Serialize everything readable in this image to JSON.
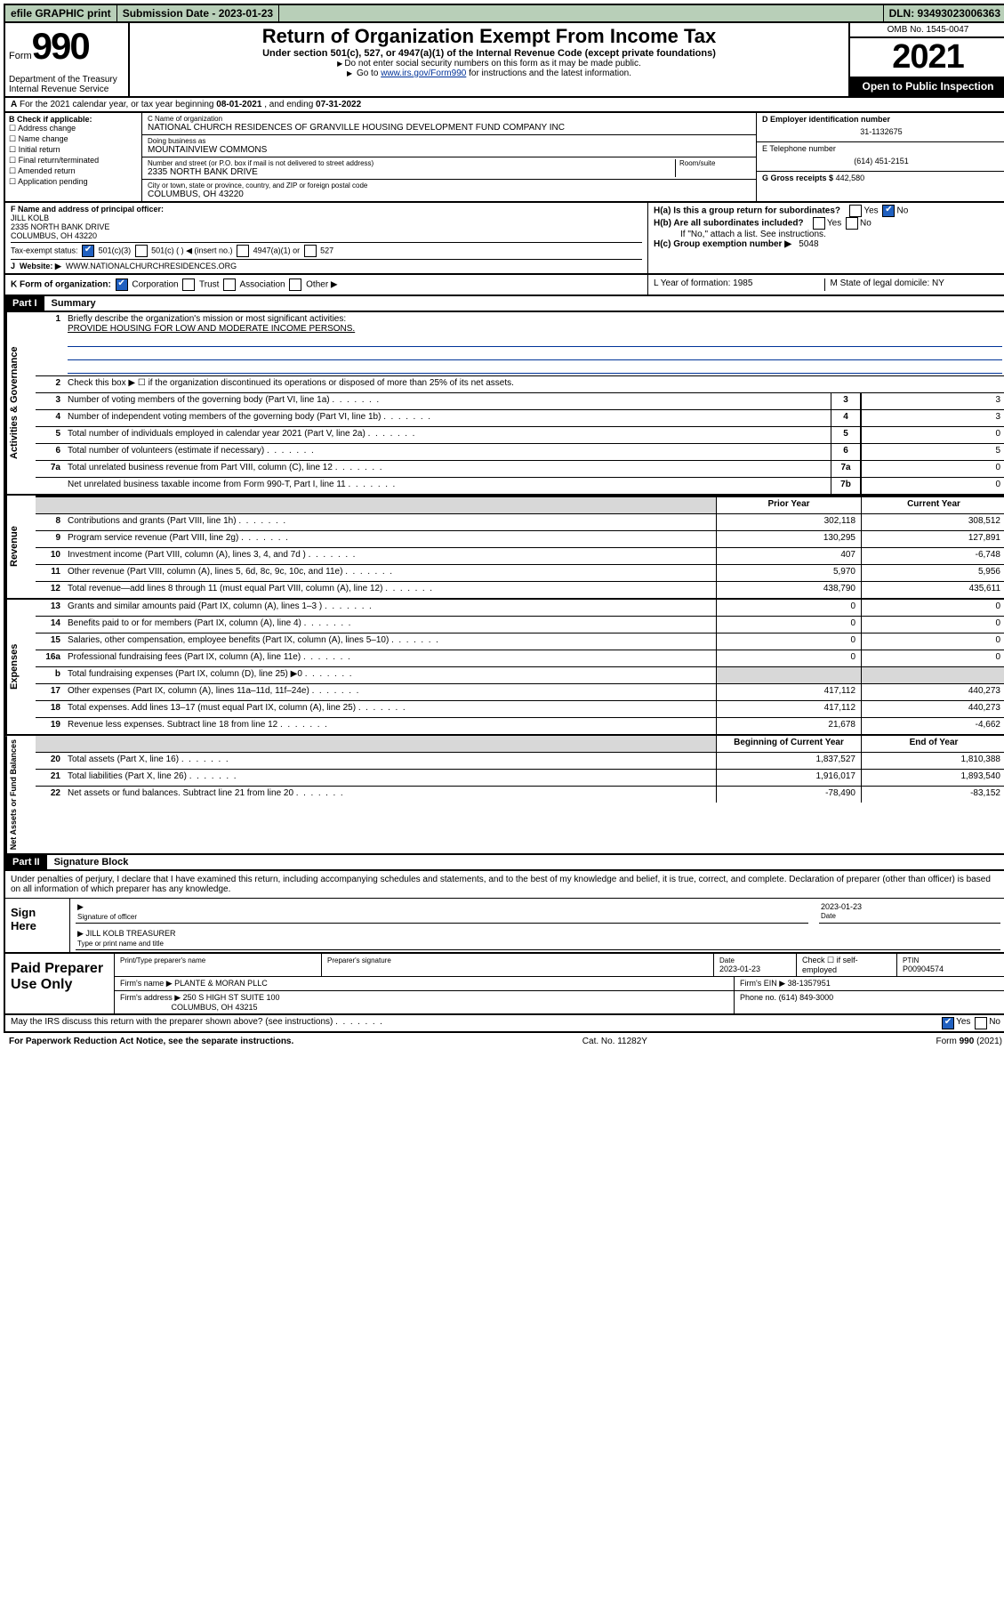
{
  "topbar": {
    "efile": "efile GRAPHIC print",
    "sub_label": "Submission Date - 2023-01-23",
    "dln": "DLN: 93493023006363"
  },
  "header": {
    "form_word": "Form",
    "form_num": "990",
    "title": "Return of Organization Exempt From Income Tax",
    "subtitle": "Under section 501(c), 527, or 4947(a)(1) of the Internal Revenue Code (except private foundations)",
    "note1": "Do not enter social security numbers on this form as it may be made public.",
    "note2_pre": "Go to ",
    "note2_link": "www.irs.gov/Form990",
    "note2_post": " for instructions and the latest information.",
    "dept": "Department of the Treasury\nInternal Revenue Service",
    "omb": "OMB No. 1545-0047",
    "year": "2021",
    "open": "Open to Public Inspection"
  },
  "line_a": {
    "pre": "For the 2021 calendar year, or tax year beginning ",
    "begin": "08-01-2021",
    "mid": " , and ending ",
    "end": "07-31-2022"
  },
  "col_b": {
    "header": "B Check if applicable:",
    "items": [
      "Address change",
      "Name change",
      "Initial return",
      "Final return/terminated",
      "Amended return",
      "Application pending"
    ]
  },
  "col_c": {
    "name_label": "C Name of organization",
    "name": "NATIONAL CHURCH RESIDENCES OF GRANVILLE HOUSING DEVELOPMENT FUND COMPANY INC",
    "dba_label": "Doing business as",
    "dba": "MOUNTAINVIEW COMMONS",
    "addr_label": "Number and street (or P.O. box if mail is not delivered to street address)",
    "addr": "2335 NORTH BANK DRIVE",
    "room_label": "Room/suite",
    "city_label": "City or town, state or province, country, and ZIP or foreign postal code",
    "city": "COLUMBUS, OH  43220"
  },
  "col_d": {
    "ein_label": "D Employer identification number",
    "ein": "31-1132675",
    "tel_label": "E Telephone number",
    "tel": "(614) 451-2151",
    "gross_label": "G Gross receipts $",
    "gross": "442,580"
  },
  "block_f": {
    "f_label": "F Name and address of principal officer:",
    "f_name": "JILL KOLB",
    "f_addr": "2335 NORTH BANK DRIVE\nCOLUMBUS, OH  43220",
    "tax_label": "Tax-exempt status:",
    "opt1": "501(c)(3)",
    "opt2": "501(c) (  ) ◀ (insert no.)",
    "opt3": "4947(a)(1) or",
    "opt4": "527",
    "web_label": "Website: ▶",
    "web": "WWW.NATIONALCHURCHRESIDENCES.ORG"
  },
  "block_h": {
    "ha": "H(a)  Is this a group return for subordinates?",
    "hb": "H(b)  Are all subordinates included?",
    "hb_note": "If \"No,\" attach a list. See instructions.",
    "hc": "H(c)  Group exemption number ▶",
    "hc_val": "5048",
    "yes": "Yes",
    "no": "No"
  },
  "line_k": {
    "k": "K Form of organization:",
    "corp": "Corporation",
    "trust": "Trust",
    "assoc": "Association",
    "other": "Other ▶",
    "l": "L Year of formation: 1985",
    "m": "M State of legal domicile: NY"
  },
  "part1": {
    "hdr": "Part I",
    "title": "Summary",
    "side1": "Activities & Governance",
    "side2": "Revenue",
    "side3": "Expenses",
    "side4": "Net Assets or Fund Balances",
    "l1": "Briefly describe the organization's mission or most significant activities:",
    "mission": "PROVIDE HOUSING FOR LOW AND MODERATE INCOME PERSONS.",
    "l2": "Check this box ▶ ☐ if the organization discontinued its operations or disposed of more than 25% of its net assets.",
    "rows_gov": [
      {
        "n": "3",
        "d": "Number of voting members of the governing body (Part VI, line 1a)",
        "b": "3",
        "v": "3"
      },
      {
        "n": "4",
        "d": "Number of independent voting members of the governing body (Part VI, line 1b)",
        "b": "4",
        "v": "3"
      },
      {
        "n": "5",
        "d": "Total number of individuals employed in calendar year 2021 (Part V, line 2a)",
        "b": "5",
        "v": "0"
      },
      {
        "n": "6",
        "d": "Total number of volunteers (estimate if necessary)",
        "b": "6",
        "v": "5"
      },
      {
        "n": "7a",
        "d": "Total unrelated business revenue from Part VIII, column (C), line 12",
        "b": "7a",
        "v": "0"
      },
      {
        "n": "",
        "d": "Net unrelated business taxable income from Form 990-T, Part I, line 11",
        "b": "7b",
        "v": "0"
      }
    ],
    "col_prior": "Prior Year",
    "col_curr": "Current Year",
    "rows_rev": [
      {
        "n": "8",
        "d": "Contributions and grants (Part VIII, line 1h)",
        "p": "302,118",
        "c": "308,512"
      },
      {
        "n": "9",
        "d": "Program service revenue (Part VIII, line 2g)",
        "p": "130,295",
        "c": "127,891"
      },
      {
        "n": "10",
        "d": "Investment income (Part VIII, column (A), lines 3, 4, and 7d )",
        "p": "407",
        "c": "-6,748"
      },
      {
        "n": "11",
        "d": "Other revenue (Part VIII, column (A), lines 5, 6d, 8c, 9c, 10c, and 11e)",
        "p": "5,970",
        "c": "5,956"
      },
      {
        "n": "12",
        "d": "Total revenue—add lines 8 through 11 (must equal Part VIII, column (A), line 12)",
        "p": "438,790",
        "c": "435,611"
      }
    ],
    "rows_exp": [
      {
        "n": "13",
        "d": "Grants and similar amounts paid (Part IX, column (A), lines 1–3 )",
        "p": "0",
        "c": "0"
      },
      {
        "n": "14",
        "d": "Benefits paid to or for members (Part IX, column (A), line 4)",
        "p": "0",
        "c": "0"
      },
      {
        "n": "15",
        "d": "Salaries, other compensation, employee benefits (Part IX, column (A), lines 5–10)",
        "p": "0",
        "c": "0"
      },
      {
        "n": "16a",
        "d": "Professional fundraising fees (Part IX, column (A), line 11e)",
        "p": "0",
        "c": "0"
      },
      {
        "n": "b",
        "d": "Total fundraising expenses (Part IX, column (D), line 25) ▶0",
        "p": "",
        "c": "",
        "grey": true
      },
      {
        "n": "17",
        "d": "Other expenses (Part IX, column (A), lines 11a–11d, 11f–24e)",
        "p": "417,112",
        "c": "440,273"
      },
      {
        "n": "18",
        "d": "Total expenses. Add lines 13–17 (must equal Part IX, column (A), line 25)",
        "p": "417,112",
        "c": "440,273"
      },
      {
        "n": "19",
        "d": "Revenue less expenses. Subtract line 18 from line 12",
        "p": "21,678",
        "c": "-4,662"
      }
    ],
    "col_beg": "Beginning of Current Year",
    "col_end": "End of Year",
    "rows_net": [
      {
        "n": "20",
        "d": "Total assets (Part X, line 16)",
        "p": "1,837,527",
        "c": "1,810,388"
      },
      {
        "n": "21",
        "d": "Total liabilities (Part X, line 26)",
        "p": "1,916,017",
        "c": "1,893,540"
      },
      {
        "n": "22",
        "d": "Net assets or fund balances. Subtract line 21 from line 20",
        "p": "-78,490",
        "c": "-83,152"
      }
    ]
  },
  "part2": {
    "hdr": "Part II",
    "title": "Signature Block",
    "decl": "Under penalties of perjury, I declare that I have examined this return, including accompanying schedules and statements, and to the best of my knowledge and belief, it is true, correct, and complete. Declaration of preparer (other than officer) is based on all information of which preparer has any knowledge.",
    "sign_here": "Sign Here",
    "sig_officer": "Signature of officer",
    "sig_date": "2023-01-23",
    "date_label": "Date",
    "name_title": "JILL KOLB  TREASURER",
    "name_label": "Type or print name and title",
    "paid": "Paid Preparer Use Only",
    "p_name_label": "Print/Type preparer's name",
    "p_sig_label": "Preparer's signature",
    "p_date_label": "Date",
    "p_date": "2023-01-23",
    "p_check": "Check ☐ if self-employed",
    "ptin_label": "PTIN",
    "ptin": "P00904574",
    "firm_name_label": "Firm's name    ▶",
    "firm_name": "PLANTE & MORAN PLLC",
    "firm_ein_label": "Firm's EIN ▶",
    "firm_ein": "38-1357951",
    "firm_addr_label": "Firm's address ▶",
    "firm_addr": "250 S HIGH ST SUITE 100",
    "firm_city": "COLUMBUS, OH  43215",
    "phone_label": "Phone no.",
    "phone": "(614) 849-3000",
    "discuss": "May the IRS discuss this return with the preparer shown above? (see instructions)",
    "yes": "Yes",
    "no": "No"
  },
  "footer": {
    "left": "For Paperwork Reduction Act Notice, see the separate instructions.",
    "mid": "Cat. No. 11282Y",
    "right": "Form 990 (2021)"
  }
}
